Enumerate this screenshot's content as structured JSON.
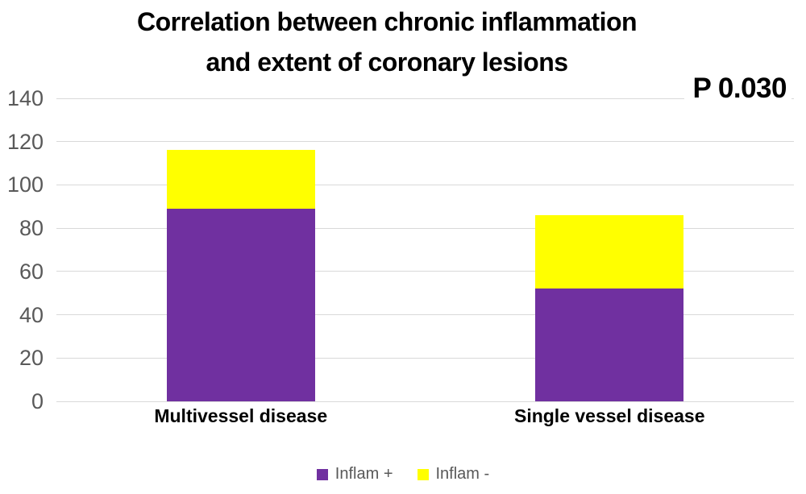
{
  "chart_data": {
    "type": "bar",
    "stacked": true,
    "title": "Correlation between chronic inflammation and extent of coronary lesions",
    "title_lines": [
      "Correlation between chronic inflammation",
      "and extent of coronary lesions"
    ],
    "annotation": "P 0.030",
    "categories": [
      "Multivessel disease",
      "Single vessel disease"
    ],
    "series": [
      {
        "name": "Inflam +",
        "color": "#7030A0",
        "values": [
          89,
          52
        ]
      },
      {
        "name": "Inflam -",
        "color": "#FFFF00",
        "values": [
          27,
          34
        ]
      }
    ],
    "totals": [
      116,
      86
    ],
    "xlabel": "",
    "ylabel": "",
    "ylim": [
      0,
      140
    ],
    "yticks": [
      0,
      20,
      40,
      60,
      80,
      100,
      120,
      140
    ],
    "grid": true,
    "legend_position": "bottom",
    "colors": {
      "axis_text": "#595959",
      "gridline": "#d9d9d9",
      "title_text": "#000000",
      "background": "#ffffff"
    }
  }
}
